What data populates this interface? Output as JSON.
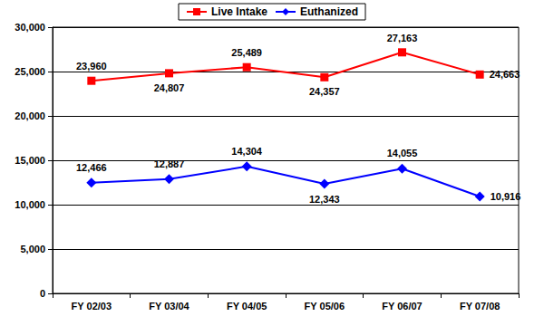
{
  "chart_data": {
    "type": "line",
    "categories": [
      "FY 02/03",
      "FY 03/04",
      "FY 04/05",
      "FY 05/06",
      "FY 06/07",
      "FY 07/08"
    ],
    "series": [
      {
        "name": "Live Intake",
        "color": "#ff0000",
        "marker": "square",
        "values": [
          23960,
          24807,
          25489,
          24357,
          27163,
          24663
        ],
        "value_labels": [
          "23,960",
          "24,807",
          "25,489",
          "24,357",
          "27,163",
          "24,663"
        ]
      },
      {
        "name": "Euthanized",
        "color": "#0000ff",
        "marker": "diamond",
        "values": [
          12466,
          12887,
          14304,
          12343,
          14055,
          10916
        ],
        "value_labels": [
          "12,466",
          "12,887",
          "14,304",
          "12,343",
          "14,055",
          "10,916"
        ]
      }
    ],
    "ylim": [
      0,
      30000
    ],
    "yticks": [
      0,
      {
        "value": 5000,
        "label": "5,000"
      },
      {
        "value": 10000,
        "label": "10,000"
      },
      {
        "value": 15000,
        "label": "15,000"
      },
      {
        "value": 20000,
        "label": "20,000"
      },
      {
        "value": 25000,
        "label": "25,000"
      },
      {
        "value": 30000,
        "label": "30,000"
      }
    ],
    "grid": true,
    "legend": "top",
    "data_labels": true
  }
}
